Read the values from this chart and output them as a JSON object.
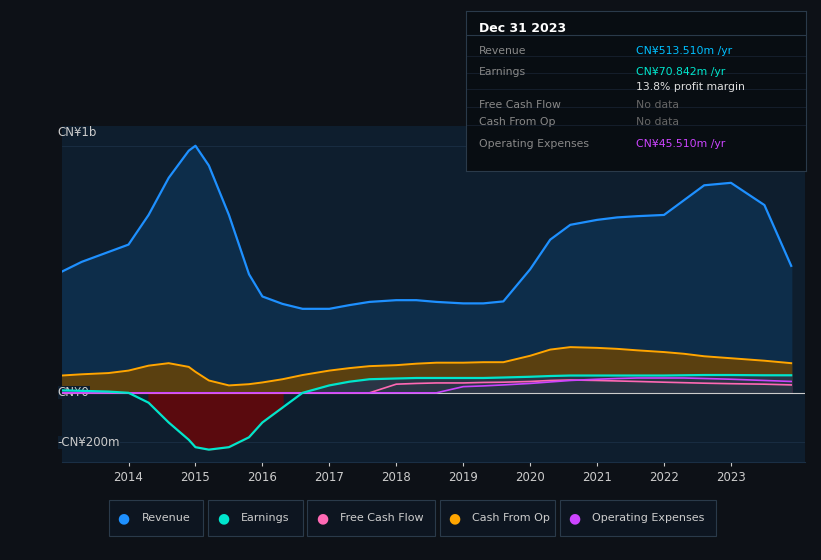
{
  "background_color": "#0d1117",
  "plot_bg_color": "#0e1e2e",
  "info_box_bg": "#080d12",
  "title_date": "Dec 31 2023",
  "info_rows": [
    {
      "label": "Revenue",
      "value": "CN¥513.510m /yr",
      "value_color": "#00bfff",
      "label_color": "#888888"
    },
    {
      "label": "Earnings",
      "value": "CN¥70.842m /yr",
      "value_color": "#00e5cc",
      "label_color": "#888888"
    },
    {
      "label": "",
      "value": "13.8% profit margin",
      "value_color": "#dddddd",
      "label_color": "#888888"
    },
    {
      "label": "Free Cash Flow",
      "value": "No data",
      "value_color": "#666666",
      "label_color": "#888888"
    },
    {
      "label": "Cash From Op",
      "value": "No data",
      "value_color": "#666666",
      "label_color": "#888888"
    },
    {
      "label": "Operating Expenses",
      "value": "CN¥45.510m /yr",
      "value_color": "#cc44ff",
      "label_color": "#888888"
    }
  ],
  "ylabel_top": "CN¥1b",
  "ylabel_zero": "CN¥0",
  "ylabel_bottom": "-CN¥200m",
  "years": [
    2013.0,
    2013.3,
    2013.7,
    2014.0,
    2014.3,
    2014.6,
    2014.9,
    2015.0,
    2015.2,
    2015.5,
    2015.8,
    2016.0,
    2016.3,
    2016.6,
    2017.0,
    2017.3,
    2017.6,
    2018.0,
    2018.3,
    2018.6,
    2019.0,
    2019.3,
    2019.6,
    2020.0,
    2020.3,
    2020.6,
    2021.0,
    2021.3,
    2021.6,
    2022.0,
    2022.3,
    2022.6,
    2023.0,
    2023.5,
    2023.9
  ],
  "revenue": [
    490,
    530,
    570,
    600,
    720,
    870,
    980,
    1000,
    920,
    720,
    480,
    390,
    360,
    340,
    340,
    355,
    368,
    375,
    375,
    368,
    362,
    362,
    370,
    500,
    620,
    680,
    700,
    710,
    715,
    720,
    780,
    840,
    850,
    760,
    514
  ],
  "earnings": [
    10,
    8,
    5,
    0,
    -40,
    -120,
    -190,
    -220,
    -230,
    -220,
    -180,
    -120,
    -60,
    0,
    30,
    45,
    55,
    58,
    60,
    60,
    60,
    60,
    62,
    65,
    68,
    70,
    70,
    70,
    70,
    70,
    71,
    72,
    72,
    71,
    71
  ],
  "cash_from_op": [
    70,
    75,
    80,
    90,
    110,
    120,
    105,
    85,
    50,
    30,
    35,
    42,
    55,
    72,
    90,
    100,
    108,
    112,
    118,
    122,
    122,
    124,
    124,
    150,
    175,
    185,
    182,
    178,
    172,
    165,
    158,
    148,
    140,
    130,
    120
  ],
  "free_cash_flow": [
    0,
    0,
    0,
    0,
    0,
    0,
    0,
    0,
    0,
    0,
    0,
    0,
    0,
    0,
    0,
    0,
    0,
    35,
    38,
    40,
    40,
    42,
    43,
    46,
    50,
    52,
    50,
    48,
    46,
    43,
    41,
    39,
    37,
    35,
    32
  ],
  "operating_expenses": [
    0,
    0,
    0,
    0,
    0,
    0,
    0,
    0,
    0,
    0,
    0,
    0,
    0,
    0,
    0,
    0,
    0,
    0,
    0,
    0,
    25,
    28,
    32,
    38,
    44,
    50,
    55,
    58,
    60,
    60,
    60,
    58,
    55,
    50,
    46
  ],
  "revenue_line_color": "#1e90ff",
  "revenue_fill_color": "#0d2d4a",
  "earnings_line_color": "#00e5cc",
  "earnings_neg_fill": "#5a0a0e",
  "earnings_pos_fill": "#2a3545",
  "cfo_line_color": "#ffa500",
  "cfo_fill_color": "#5a4010",
  "fcf_line_color": "#ff69b4",
  "fcf_fill_color": "#5a2535",
  "opex_line_color": "#cc44ff",
  "opex_fill_color": "#3a1a5a",
  "grid_color": "#1a2f45",
  "zero_line_color": "#cccccc",
  "text_color": "#cccccc",
  "legend_bg": "#0d1520",
  "legend_border": "#2a3a4a",
  "legend_items": [
    {
      "label": "Revenue",
      "color": "#1e90ff"
    },
    {
      "label": "Earnings",
      "color": "#00e5cc"
    },
    {
      "label": "Free Cash Flow",
      "color": "#ff69b4"
    },
    {
      "label": "Cash From Op",
      "color": "#ffa500"
    },
    {
      "label": "Operating Expenses",
      "color": "#cc44ff"
    }
  ],
  "ylim": [
    -280,
    1080
  ],
  "xlim": [
    2013.0,
    2024.1
  ],
  "xticks": [
    2014,
    2015,
    2016,
    2017,
    2018,
    2019,
    2020,
    2021,
    2022,
    2023
  ]
}
